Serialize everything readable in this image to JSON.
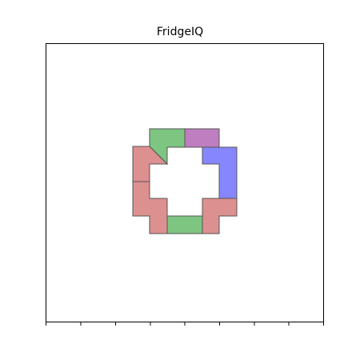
{
  "title": "FridgeIQ",
  "pieces": [
    {
      "id": "green-top",
      "color": "#4caf50",
      "opacity": 0.72
    },
    {
      "id": "purple-top",
      "color": "#a64ca6",
      "opacity": 0.72
    },
    {
      "id": "blue-right",
      "color": "#3c3cff",
      "opacity": 0.62
    },
    {
      "id": "red-left-upper",
      "color": "#cd5c5c",
      "opacity": 0.68
    },
    {
      "id": "red-left-lower",
      "color": "#cd5c5c",
      "opacity": 0.68
    },
    {
      "id": "green-bottom",
      "color": "#4caf50",
      "opacity": 0.72
    },
    {
      "id": "red-right-lower",
      "color": "#cd5c5c",
      "opacity": 0.68
    }
  ],
  "axes": {
    "xticks": 9,
    "frame": true
  }
}
